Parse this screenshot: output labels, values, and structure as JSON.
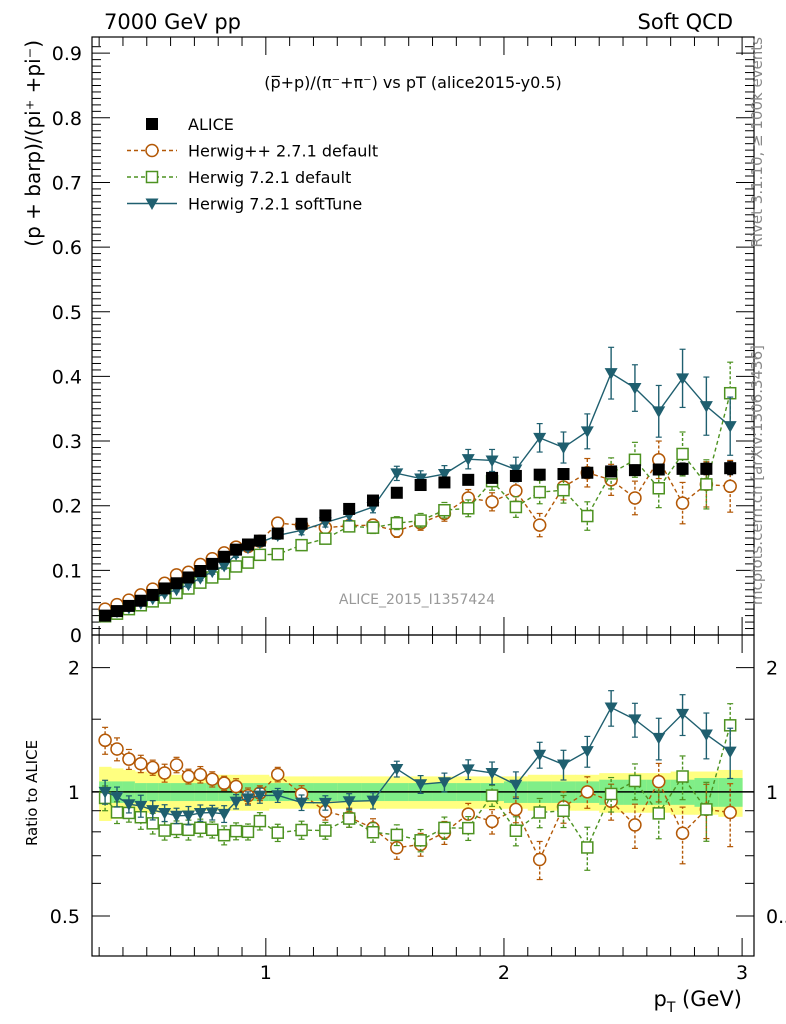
{
  "header": {
    "left": "7000 GeV pp",
    "right": "Soft QCD"
  },
  "side_labels": {
    "rivet": "Rivet 3.1.10, ≥ 100k events",
    "mcplots": "mcplots.cern.ch [arXiv:1306.3436]"
  },
  "watermark": "ALICE_2015_I1357424",
  "chart_data": {
    "type": "line",
    "title": "(p̅+p)/(π⁻+π⁻) vs pT (alice2015-y0.5)",
    "xlabel_main": "p",
    "xlabel_sub": "T",
    "xlabel_unit": " (GeV)",
    "ylabel_main": "(p + barp)/(pi⁺ +pi⁻)",
    "ylabel_ratio": "Ratio to ALICE",
    "xlim": [
      0.27,
      3.05
    ],
    "ylim": [
      0,
      0.925
    ],
    "ratio_ylim": [
      0.4,
      2.4
    ],
    "ratio_scale": "log",
    "xticks": [
      1,
      2,
      3
    ],
    "xtick_labels": [
      "1",
      "2",
      "3"
    ],
    "yticks": [
      0,
      0.1,
      0.2,
      0.3,
      0.4,
      0.5,
      0.6,
      0.7,
      0.8,
      0.9
    ],
    "ytick_labels": [
      "0",
      "0.1",
      "0.2",
      "0.3",
      "0.4",
      "0.5",
      "0.6",
      "0.7",
      "0.8",
      "0.9"
    ],
    "ratio_yticks": [
      0.5,
      1,
      2
    ],
    "ratio_ytick_labels": [
      "0.5",
      "1",
      "2"
    ],
    "legend_position": "top-left",
    "x": [
      0.325,
      0.375,
      0.425,
      0.475,
      0.525,
      0.575,
      0.625,
      0.675,
      0.725,
      0.775,
      0.825,
      0.875,
      0.925,
      0.975,
      1.05,
      1.15,
      1.25,
      1.35,
      1.45,
      1.55,
      1.65,
      1.75,
      1.85,
      1.95,
      2.05,
      2.15,
      2.25,
      2.35,
      2.45,
      2.55,
      2.65,
      2.75,
      2.85,
      2.95
    ],
    "data_band": {
      "stat_fraction": [
        0.06,
        0.06,
        0.06,
        0.05,
        0.05,
        0.05,
        0.05,
        0.05,
        0.05,
        0.05,
        0.05,
        0.05,
        0.05,
        0.05,
        0.05,
        0.05,
        0.05,
        0.05,
        0.05,
        0.05,
        0.05,
        0.05,
        0.05,
        0.05,
        0.06,
        0.06,
        0.06,
        0.06,
        0.07,
        0.07,
        0.07,
        0.07,
        0.08,
        0.08
      ],
      "total_fraction": [
        0.15,
        0.14,
        0.13,
        0.12,
        0.11,
        0.11,
        0.1,
        0.1,
        0.1,
        0.1,
        0.1,
        0.1,
        0.1,
        0.1,
        0.09,
        0.09,
        0.09,
        0.09,
        0.09,
        0.09,
        0.09,
        0.09,
        0.09,
        0.09,
        0.09,
        0.1,
        0.1,
        0.1,
        0.11,
        0.11,
        0.11,
        0.12,
        0.12,
        0.13
      ]
    },
    "series": [
      {
        "name": "ALICE",
        "color": "#000000",
        "marker": "square-filled",
        "dashed": false,
        "line": false,
        "values": [
          0.03,
          0.037,
          0.045,
          0.053,
          0.062,
          0.072,
          0.08,
          0.089,
          0.099,
          0.11,
          0.121,
          0.132,
          0.14,
          0.146,
          0.157,
          0.172,
          0.185,
          0.195,
          0.208,
          0.22,
          0.232,
          0.236,
          0.24,
          0.243,
          0.246,
          0.248,
          0.249,
          0.251,
          0.253,
          0.255,
          0.256,
          0.257,
          0.257,
          0.258
        ],
        "errors": [
          0.002,
          0.002,
          0.002,
          0.002,
          0.002,
          0.002,
          0.002,
          0.002,
          0.002,
          0.002,
          0.003,
          0.003,
          0.003,
          0.003,
          0.003,
          0.003,
          0.004,
          0.004,
          0.004,
          0.004,
          0.004,
          0.005,
          0.005,
          0.005,
          0.006,
          0.006,
          0.006,
          0.007,
          0.007,
          0.008,
          0.008,
          0.009,
          0.009,
          0.01
        ]
      },
      {
        "name": "Herwig++ 2.7.1 default",
        "color": "#b35806",
        "marker": "circle-open",
        "dashed": true,
        "line": true,
        "values": [
          0.04,
          0.047,
          0.054,
          0.062,
          0.071,
          0.08,
          0.093,
          0.097,
          0.109,
          0.118,
          0.127,
          0.136,
          0.137,
          0.145,
          0.173,
          0.17,
          0.166,
          0.169,
          0.17,
          0.161,
          0.173,
          0.188,
          0.212,
          0.206,
          0.223,
          0.17,
          0.229,
          0.251,
          0.24,
          0.212,
          0.271,
          0.204,
          0.233,
          0.23
        ],
        "errors": [
          0.003,
          0.003,
          0.003,
          0.003,
          0.003,
          0.004,
          0.004,
          0.004,
          0.005,
          0.005,
          0.005,
          0.006,
          0.006,
          0.006,
          0.007,
          0.008,
          0.008,
          0.009,
          0.009,
          0.01,
          0.011,
          0.012,
          0.013,
          0.014,
          0.016,
          0.018,
          0.02,
          0.022,
          0.024,
          0.026,
          0.029,
          0.032,
          0.035,
          0.04
        ]
      },
      {
        "name": "Herwig 7.2.1 default",
        "color": "#4d9221",
        "marker": "square-open",
        "dashed": true,
        "line": true,
        "values": [
          0.029,
          0.033,
          0.04,
          0.046,
          0.052,
          0.058,
          0.065,
          0.072,
          0.081,
          0.089,
          0.095,
          0.106,
          0.112,
          0.124,
          0.125,
          0.139,
          0.149,
          0.168,
          0.166,
          0.173,
          0.177,
          0.193,
          0.196,
          0.238,
          0.198,
          0.221,
          0.224,
          0.184,
          0.25,
          0.271,
          0.227,
          0.28,
          0.233,
          0.374
        ],
        "errors": [
          0.002,
          0.002,
          0.002,
          0.003,
          0.003,
          0.003,
          0.003,
          0.004,
          0.004,
          0.004,
          0.005,
          0.005,
          0.005,
          0.006,
          0.006,
          0.007,
          0.007,
          0.008,
          0.009,
          0.01,
          0.011,
          0.012,
          0.013,
          0.014,
          0.016,
          0.018,
          0.02,
          0.022,
          0.024,
          0.027,
          0.03,
          0.034,
          0.038,
          0.048
        ]
      },
      {
        "name": "Herwig 7.2.1 softTune",
        "color": "#1f5f6f",
        "marker": "triangle-down-filled",
        "dashed": false,
        "line": true,
        "values": [
          0.03,
          0.036,
          0.042,
          0.049,
          0.056,
          0.064,
          0.07,
          0.078,
          0.088,
          0.098,
          0.107,
          0.125,
          0.135,
          0.143,
          0.154,
          0.162,
          0.174,
          0.185,
          0.198,
          0.25,
          0.242,
          0.249,
          0.272,
          0.27,
          0.256,
          0.305,
          0.29,
          0.315,
          0.405,
          0.382,
          0.346,
          0.397,
          0.354,
          0.323
        ],
        "errors": [
          0.002,
          0.002,
          0.002,
          0.003,
          0.003,
          0.003,
          0.003,
          0.004,
          0.004,
          0.004,
          0.005,
          0.005,
          0.005,
          0.006,
          0.006,
          0.007,
          0.007,
          0.008,
          0.009,
          0.011,
          0.012,
          0.013,
          0.015,
          0.017,
          0.019,
          0.022,
          0.024,
          0.027,
          0.04,
          0.036,
          0.04,
          0.045,
          0.045,
          0.045
        ]
      }
    ]
  }
}
